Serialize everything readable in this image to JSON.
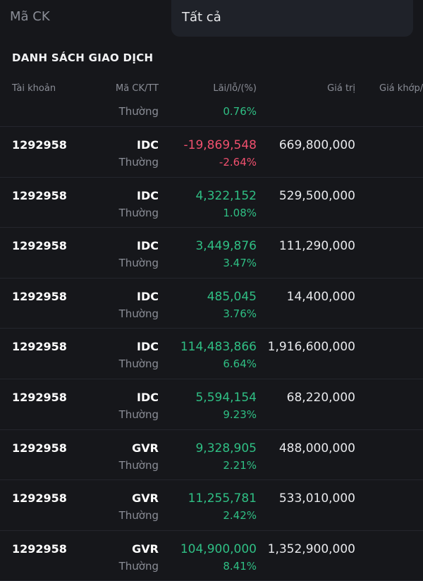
{
  "filters": {
    "stock_placeholder": "Mã CK",
    "type_selected": "Tất cả"
  },
  "section_title": "DANH SÁCH GIAO DỊCH",
  "columns": {
    "account": "Tài khoản",
    "symbol": "Mã CK/TT",
    "pnl": "Lãi/lỗ/(%)",
    "value": "Giá trị",
    "match_price": "Giá khớp/"
  },
  "colors": {
    "positive": "#2fbf84",
    "negative": "#f0506e"
  },
  "rows": [
    {
      "account": "",
      "symbol": "",
      "type": "Thường",
      "pnl": "",
      "pnl_pct": "0.76%",
      "value": "",
      "sign": "pos"
    },
    {
      "account": "1292958",
      "symbol": "IDC",
      "type": "Thường",
      "pnl": "-19,869,548",
      "pnl_pct": "-2.64%",
      "value": "669,800,000",
      "sign": "neg"
    },
    {
      "account": "1292958",
      "symbol": "IDC",
      "type": "Thường",
      "pnl": "4,322,152",
      "pnl_pct": "1.08%",
      "value": "529,500,000",
      "sign": "pos"
    },
    {
      "account": "1292958",
      "symbol": "IDC",
      "type": "Thường",
      "pnl": "3,449,876",
      "pnl_pct": "3.47%",
      "value": "111,290,000",
      "sign": "pos"
    },
    {
      "account": "1292958",
      "symbol": "IDC",
      "type": "Thường",
      "pnl": "485,045",
      "pnl_pct": "3.76%",
      "value": "14,400,000",
      "sign": "pos"
    },
    {
      "account": "1292958",
      "symbol": "IDC",
      "type": "Thường",
      "pnl": "114,483,866",
      "pnl_pct": "6.64%",
      "value": "1,916,600,000",
      "sign": "pos"
    },
    {
      "account": "1292958",
      "symbol": "IDC",
      "type": "Thường",
      "pnl": "5,594,154",
      "pnl_pct": "9.23%",
      "value": "68,220,000",
      "sign": "pos"
    },
    {
      "account": "1292958",
      "symbol": "GVR",
      "type": "Thường",
      "pnl": "9,328,905",
      "pnl_pct": "2.21%",
      "value": "488,000,000",
      "sign": "pos"
    },
    {
      "account": "1292958",
      "symbol": "GVR",
      "type": "Thường",
      "pnl": "11,255,781",
      "pnl_pct": "2.42%",
      "value": "533,010,000",
      "sign": "pos"
    },
    {
      "account": "1292958",
      "symbol": "GVR",
      "type": "Thường",
      "pnl": "104,900,000",
      "pnl_pct": "8.41%",
      "value": "1,352,900,000",
      "sign": "pos"
    }
  ]
}
